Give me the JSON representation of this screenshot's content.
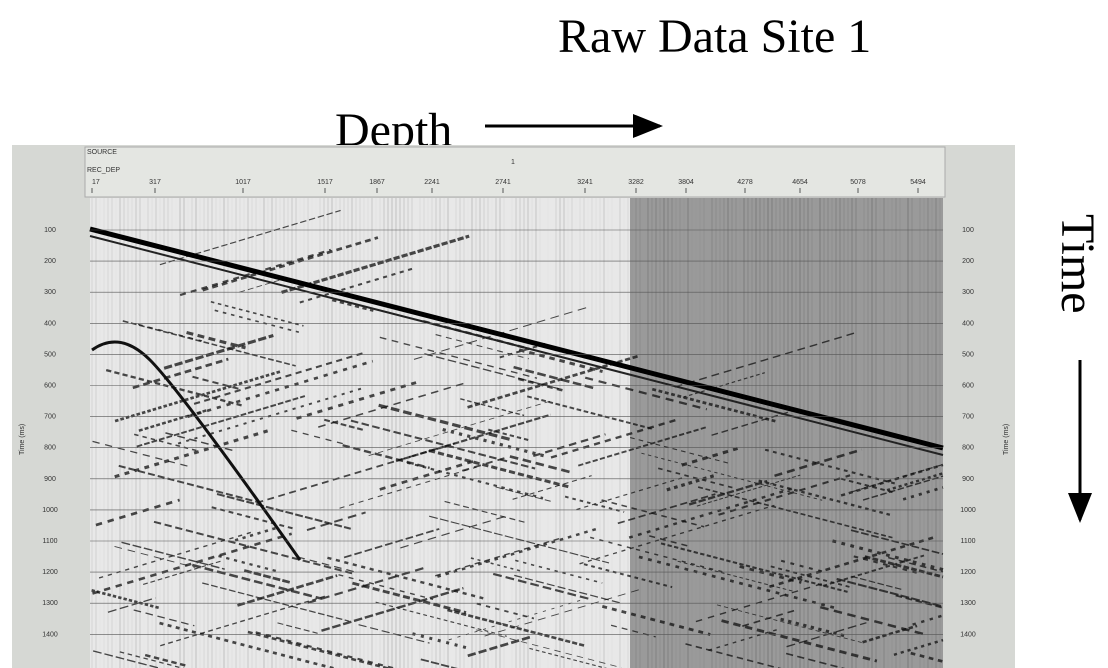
{
  "title": "Raw Data  Site 1",
  "depth_label": "Depth",
  "time_label": "Time",
  "panel": {
    "header": {
      "source_label": "SOURCE",
      "source_value": "1",
      "rec_label": "REC_DEP"
    },
    "depth_ticks": [
      "17",
      "317",
      "1017",
      "1517",
      "1867",
      "2241",
      "2741",
      "3241",
      "3282",
      "3804",
      "4278",
      "4654",
      "5078",
      "5494"
    ],
    "time_ticks": [
      "100",
      "200",
      "300",
      "400",
      "500",
      "600",
      "700",
      "800",
      "900",
      "1000",
      "1100",
      "1200",
      "1300",
      "1400"
    ],
    "time_axis_label": "Time (ms)"
  }
}
